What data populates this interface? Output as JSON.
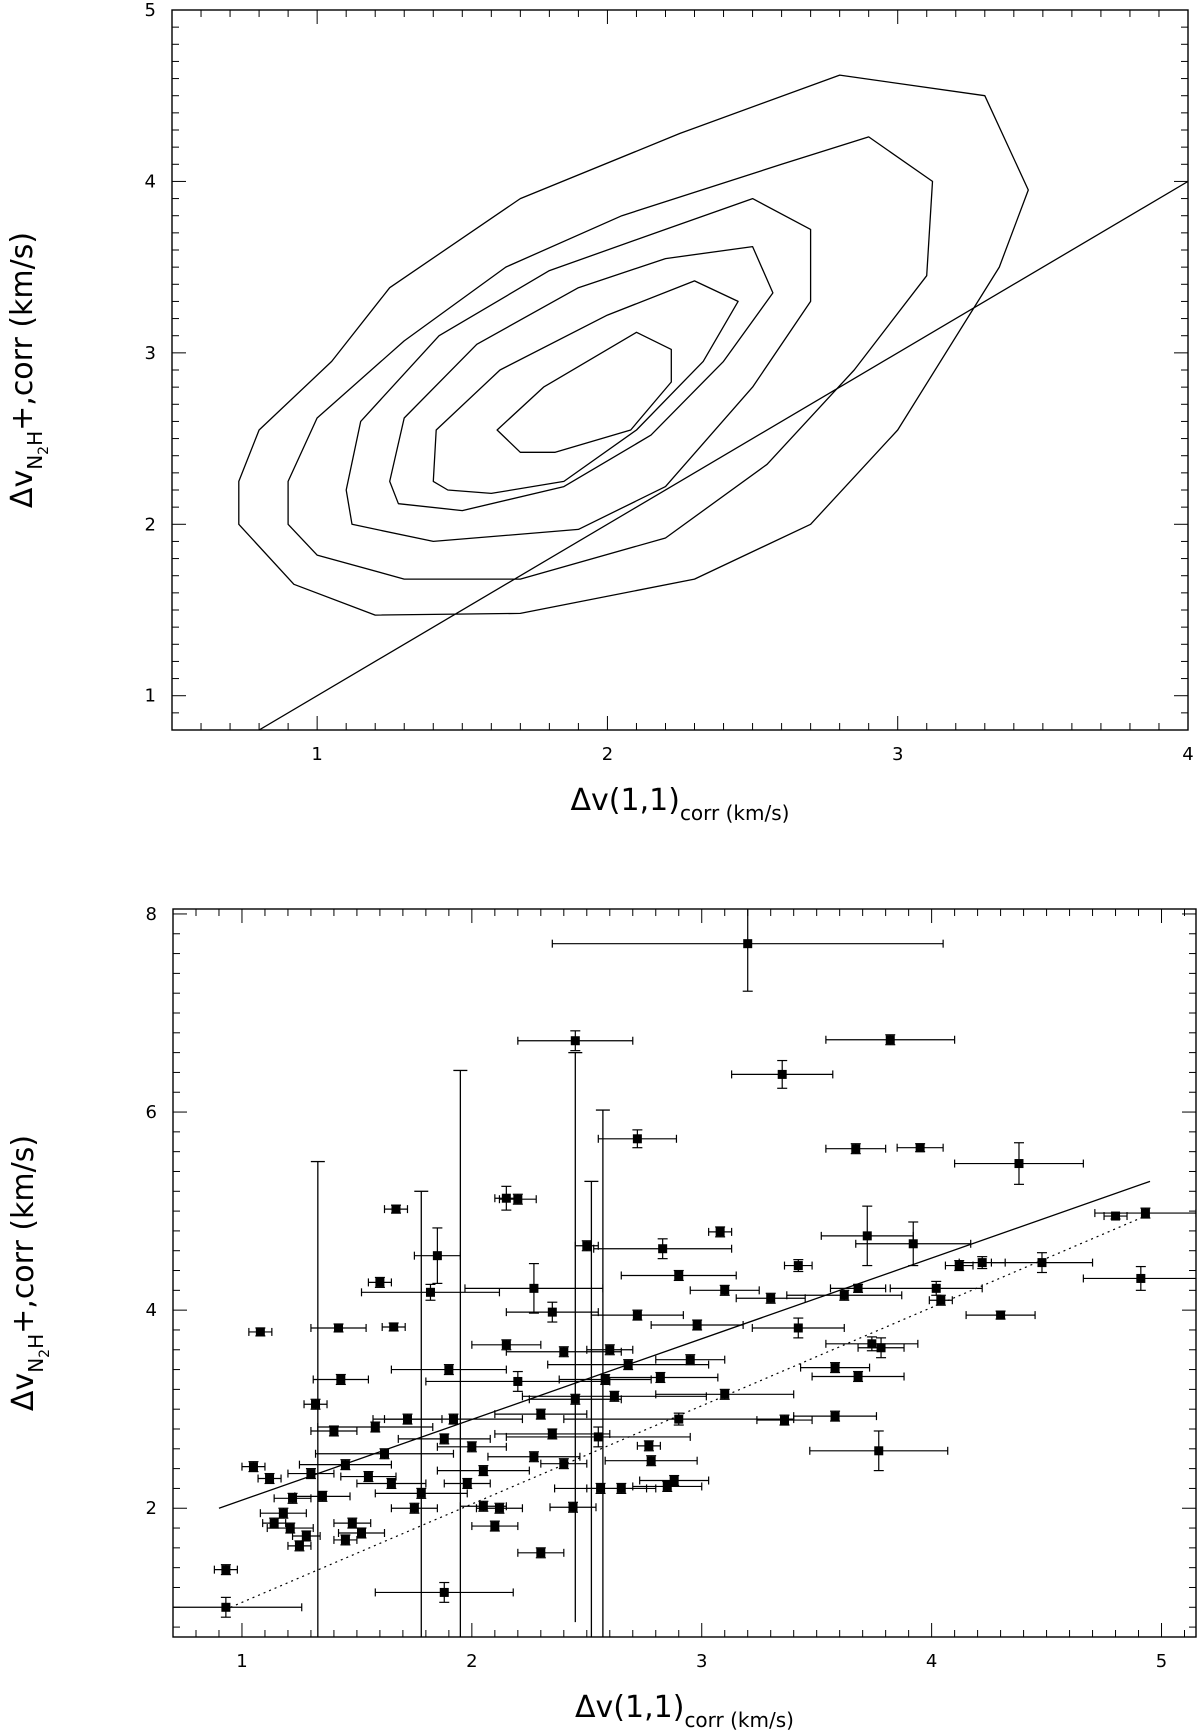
{
  "chart_data": [
    {
      "type": "contour",
      "xlabel": "Δv(1,1)",
      "xlabel_sub": "corr",
      "xlabel_unit": " (km/s)",
      "ylabel": "Δv",
      "ylabel_sub": "N",
      "ylabel_sub2": "2",
      "ylabel_sub3": "H",
      "ylabel_sup": "+",
      "ylabel_tail": ",corr",
      "ylabel_unit": "  (km/s)",
      "xlim": [
        0.5,
        4.0
      ],
      "ylim": [
        0.8,
        5.0
      ],
      "xticks": [
        "1",
        "2",
        "3",
        "4"
      ],
      "yticks": [
        "1",
        "2",
        "3",
        "4",
        "5"
      ],
      "line": [
        [
          0.8,
          0.8
        ],
        [
          4.0,
          4.0
        ]
      ],
      "contours": [
        [
          [
            0.73,
            2.25
          ],
          [
            0.8,
            2.55
          ],
          [
            1.05,
            2.95
          ],
          [
            1.25,
            3.38
          ],
          [
            1.7,
            3.9
          ],
          [
            2.25,
            4.28
          ],
          [
            2.8,
            4.62
          ],
          [
            3.3,
            4.5
          ],
          [
            3.45,
            3.95
          ],
          [
            3.35,
            3.5
          ],
          [
            3.0,
            2.55
          ],
          [
            2.7,
            2.0
          ],
          [
            2.3,
            1.68
          ],
          [
            1.7,
            1.48
          ],
          [
            1.2,
            1.47
          ],
          [
            0.92,
            1.65
          ],
          [
            0.73,
            2.0
          ]
        ],
        [
          [
            0.9,
            2.25
          ],
          [
            1.0,
            2.62
          ],
          [
            1.3,
            3.07
          ],
          [
            1.65,
            3.5
          ],
          [
            2.05,
            3.8
          ],
          [
            2.6,
            4.1
          ],
          [
            2.9,
            4.26
          ],
          [
            3.12,
            4.0
          ],
          [
            3.1,
            3.45
          ],
          [
            2.85,
            2.9
          ],
          [
            2.55,
            2.35
          ],
          [
            2.2,
            1.92
          ],
          [
            1.7,
            1.68
          ],
          [
            1.3,
            1.68
          ],
          [
            1.0,
            1.82
          ],
          [
            0.9,
            2.0
          ]
        ],
        [
          [
            1.1,
            2.2
          ],
          [
            1.15,
            2.6
          ],
          [
            1.42,
            3.1
          ],
          [
            1.8,
            3.48
          ],
          [
            2.2,
            3.72
          ],
          [
            2.5,
            3.9
          ],
          [
            2.7,
            3.72
          ],
          [
            2.7,
            3.3
          ],
          [
            2.5,
            2.8
          ],
          [
            2.2,
            2.22
          ],
          [
            1.9,
            1.97
          ],
          [
            1.4,
            1.9
          ],
          [
            1.12,
            2.0
          ]
        ],
        [
          [
            1.25,
            2.25
          ],
          [
            1.3,
            2.62
          ],
          [
            1.55,
            3.05
          ],
          [
            1.9,
            3.38
          ],
          [
            2.2,
            3.55
          ],
          [
            2.5,
            3.62
          ],
          [
            2.57,
            3.35
          ],
          [
            2.4,
            2.95
          ],
          [
            2.15,
            2.52
          ],
          [
            1.85,
            2.22
          ],
          [
            1.5,
            2.08
          ],
          [
            1.28,
            2.12
          ]
        ],
        [
          [
            1.4,
            2.25
          ],
          [
            1.41,
            2.55
          ],
          [
            1.63,
            2.9
          ],
          [
            2.0,
            3.22
          ],
          [
            2.3,
            3.42
          ],
          [
            2.45,
            3.3
          ],
          [
            2.33,
            2.95
          ],
          [
            2.1,
            2.55
          ],
          [
            1.85,
            2.25
          ],
          [
            1.6,
            2.18
          ],
          [
            1.45,
            2.2
          ]
        ],
        [
          [
            1.62,
            2.55
          ],
          [
            1.78,
            2.8
          ],
          [
            2.1,
            3.12
          ],
          [
            2.22,
            3.02
          ],
          [
            2.22,
            2.83
          ],
          [
            2.08,
            2.55
          ],
          [
            1.82,
            2.42
          ],
          [
            1.7,
            2.42
          ],
          [
            1.62,
            2.55
          ]
        ]
      ]
    },
    {
      "type": "scatter",
      "xlabel": "Δv(1,1)",
      "xlabel_sub": "corr",
      "xlabel_unit": "  (km/s)",
      "ylabel": "Δv",
      "ylabel_sub": "N",
      "ylabel_sub2": "2",
      "ylabel_sub3": "H",
      "ylabel_sup": "+",
      "ylabel_tail": ",corr",
      "ylabel_unit": "  (km/s)",
      "xlim": [
        0.7,
        5.15
      ],
      "ylim": [
        0.7,
        8.05
      ],
      "xticks": [
        "1",
        "2",
        "3",
        "4",
        "5"
      ],
      "yticks": [
        "2",
        "4",
        "6",
        "8"
      ],
      "fit_line": [
        [
          0.9,
          2.0
        ],
        [
          4.95,
          5.3
        ]
      ],
      "one_to_one": [
        [
          0.95,
          1.0
        ],
        [
          4.95,
          4.97
        ]
      ],
      "points": [
        [
          3.2,
          7.7,
          0.85,
          0.48
        ],
        [
          2.45,
          6.72,
          0.25,
          0.1
        ],
        [
          3.82,
          6.73,
          0.28,
          0.05
        ],
        [
          3.35,
          6.38,
          0.22,
          0.14
        ],
        [
          2.72,
          5.73,
          0.17,
          0.09
        ],
        [
          3.67,
          5.63,
          0.13,
          0.05
        ],
        [
          3.95,
          5.64,
          0.1,
          0.04
        ],
        [
          4.38,
          5.48,
          0.28,
          0.21
        ],
        [
          2.15,
          5.13,
          0.05,
          0.12
        ],
        [
          2.2,
          5.12,
          0.08,
          0.05
        ],
        [
          1.67,
          5.02,
          0.05,
          0.04
        ],
        [
          4.93,
          4.98,
          0.22,
          0.05
        ],
        [
          4.8,
          4.95,
          0.05,
          0.03
        ],
        [
          3.08,
          4.79,
          0.05,
          0.05
        ],
        [
          1.85,
          4.55,
          0.1,
          0.28
        ],
        [
          3.72,
          4.75,
          0.2,
          0.3
        ],
        [
          3.92,
          4.67,
          0.25,
          0.22
        ],
        [
          4.48,
          4.48,
          0.22,
          0.1
        ],
        [
          4.22,
          4.48,
          0.1,
          0.06
        ],
        [
          4.12,
          4.45,
          0.06,
          0.05
        ],
        [
          4.91,
          4.32,
          0.25,
          0.12
        ],
        [
          3.42,
          4.45,
          0.06,
          0.06
        ],
        [
          3.62,
          4.15,
          0.25,
          0.05
        ],
        [
          4.02,
          4.22,
          0.2,
          0.07
        ],
        [
          4.04,
          4.1,
          0.05,
          0.05
        ],
        [
          3.68,
          4.22,
          0.12,
          0.04
        ],
        [
          2.27,
          4.22,
          0.3,
          0.25
        ],
        [
          1.6,
          4.28,
          0.05,
          0.05
        ],
        [
          1.82,
          4.18,
          0.3,
          0.08
        ],
        [
          4.3,
          3.95,
          0.15,
          0.04
        ],
        [
          2.35,
          3.98,
          0.2,
          0.1
        ],
        [
          3.42,
          3.82,
          0.2,
          0.1
        ],
        [
          1.42,
          3.82,
          0.12,
          0.04
        ],
        [
          1.66,
          3.83,
          0.05,
          0.04
        ],
        [
          1.08,
          3.78,
          0.05,
          0.04
        ],
        [
          3.78,
          3.62,
          0.1,
          0.1
        ],
        [
          3.74,
          3.66,
          0.2,
          0.07
        ],
        [
          3.58,
          3.42,
          0.15,
          0.05
        ],
        [
          3.68,
          3.33,
          0.2,
          0.05
        ],
        [
          3.58,
          2.93,
          0.18,
          0.05
        ],
        [
          3.36,
          2.89,
          0.12,
          0.05
        ],
        [
          2.85,
          2.22,
          0.15,
          0.05
        ],
        [
          3.77,
          2.58,
          0.3,
          0.2
        ],
        [
          1.43,
          3.3,
          0.12,
          0.05
        ],
        [
          1.32,
          3.05,
          0.05,
          0.05
        ],
        [
          1.05,
          2.42,
          0.05,
          0.05
        ],
        [
          1.12,
          2.3,
          0.05,
          0.05
        ],
        [
          0.93,
          1.38,
          0.05,
          0.05
        ],
        [
          0.93,
          1.0,
          0.33,
          0.1
        ],
        [
          1.88,
          1.15,
          0.3,
          0.1
        ],
        [
          2.3,
          1.55,
          0.1,
          0.05
        ],
        [
          2.44,
          2.01,
          0.1,
          0.05
        ],
        [
          1.18,
          1.95,
          0.1,
          0.05
        ],
        [
          1.21,
          1.8,
          0.1,
          0.05
        ],
        [
          1.25,
          1.62,
          0.05,
          0.05
        ],
        [
          1.14,
          1.85,
          0.05,
          0.05
        ],
        [
          1.52,
          1.75,
          0.1,
          0.05
        ],
        [
          1.45,
          1.68,
          0.05,
          0.05
        ],
        [
          2.1,
          1.82,
          0.1,
          0.05
        ],
        [
          2.05,
          2.02,
          0.1,
          0.05
        ],
        [
          2.56,
          2.2,
          0.2,
          0.05
        ],
        [
          2.65,
          2.2,
          0.15,
          0.05
        ],
        [
          2.12,
          2.0,
          0.1,
          0.05
        ],
        [
          2.88,
          2.28,
          0.15,
          0.05
        ],
        [
          2.9,
          2.9,
          0.5,
          0.06
        ],
        [
          3.1,
          3.15,
          0.3,
          0.05
        ],
        [
          2.77,
          2.63,
          0.05,
          0.05
        ],
        [
          2.83,
          4.62,
          0.3,
          0.1
        ],
        [
          2.5,
          4.65,
          0.05,
          0.05
        ],
        [
          1.92,
          2.9,
          0.3,
          0.05
        ],
        [
          2.2,
          3.28,
          0.4,
          0.1
        ],
        [
          2.55,
          2.72,
          0.4,
          0.1
        ],
        [
          2.62,
          3.13,
          0.4,
          0.05
        ],
        [
          2.68,
          3.45,
          0.35,
          0.05
        ],
        [
          1.62,
          2.55,
          0.3,
          0.05
        ],
        [
          1.45,
          2.44,
          0.2,
          0.05
        ],
        [
          1.58,
          2.82,
          0.25,
          0.05
        ],
        [
          1.78,
          2.15,
          0.2,
          0.05
        ],
        [
          2.35,
          2.75,
          0.25,
          0.05
        ],
        [
          2.05,
          2.38,
          0.2,
          0.05
        ],
        [
          2.4,
          3.58,
          0.25,
          0.05
        ],
        [
          2.98,
          3.85,
          0.2,
          0.05
        ],
        [
          3.1,
          4.2,
          0.15,
          0.05
        ],
        [
          2.9,
          4.35,
          0.25,
          0.05
        ],
        [
          1.3,
          2.35,
          0.1,
          0.05
        ],
        [
          1.35,
          2.12,
          0.12,
          0.05
        ],
        [
          1.65,
          2.25,
          0.15,
          0.05
        ],
        [
          1.88,
          2.7,
          0.2,
          0.05
        ],
        [
          2.27,
          2.52,
          0.2,
          0.05
        ],
        [
          2.58,
          3.3,
          0.2,
          0.05
        ],
        [
          2.82,
          3.32,
          0.25,
          0.05
        ],
        [
          2.72,
          3.95,
          0.2,
          0.05
        ],
        [
          3.3,
          4.12,
          0.15,
          0.05
        ],
        [
          1.55,
          2.32,
          0.12,
          0.05
        ],
        [
          1.9,
          3.4,
          0.25,
          0.05
        ],
        [
          2.15,
          3.65,
          0.15,
          0.05
        ],
        [
          2.45,
          3.1,
          0.2,
          0.05
        ],
        [
          2.78,
          2.48,
          0.2,
          0.05
        ],
        [
          1.72,
          2.9,
          0.15,
          0.05
        ],
        [
          2.0,
          2.62,
          0.15,
          0.05
        ],
        [
          2.3,
          2.95,
          0.2,
          0.05
        ],
        [
          1.4,
          2.78,
          0.1,
          0.05
        ],
        [
          1.22,
          2.1,
          0.08,
          0.05
        ],
        [
          1.48,
          1.85,
          0.08,
          0.05
        ],
        [
          1.28,
          1.72,
          0.06,
          0.05
        ],
        [
          1.75,
          2.0,
          0.1,
          0.05
        ],
        [
          2.6,
          3.6,
          0.1,
          0.05
        ],
        [
          2.95,
          3.5,
          0.15,
          0.05
        ],
        [
          2.4,
          2.45,
          0.1,
          0.05
        ],
        [
          1.98,
          2.25,
          0.1,
          0.05
        ]
      ],
      "tall_errors": [
        [
          1.33,
          0.7,
          5.5
        ],
        [
          1.78,
          0.7,
          5.2
        ],
        [
          1.95,
          0.7,
          6.42
        ],
        [
          2.45,
          0.85,
          6.6
        ],
        [
          2.52,
          0.7,
          5.3
        ],
        [
          2.57,
          0.7,
          6.02
        ]
      ],
      "marker_style": "filled square with error bars"
    }
  ]
}
